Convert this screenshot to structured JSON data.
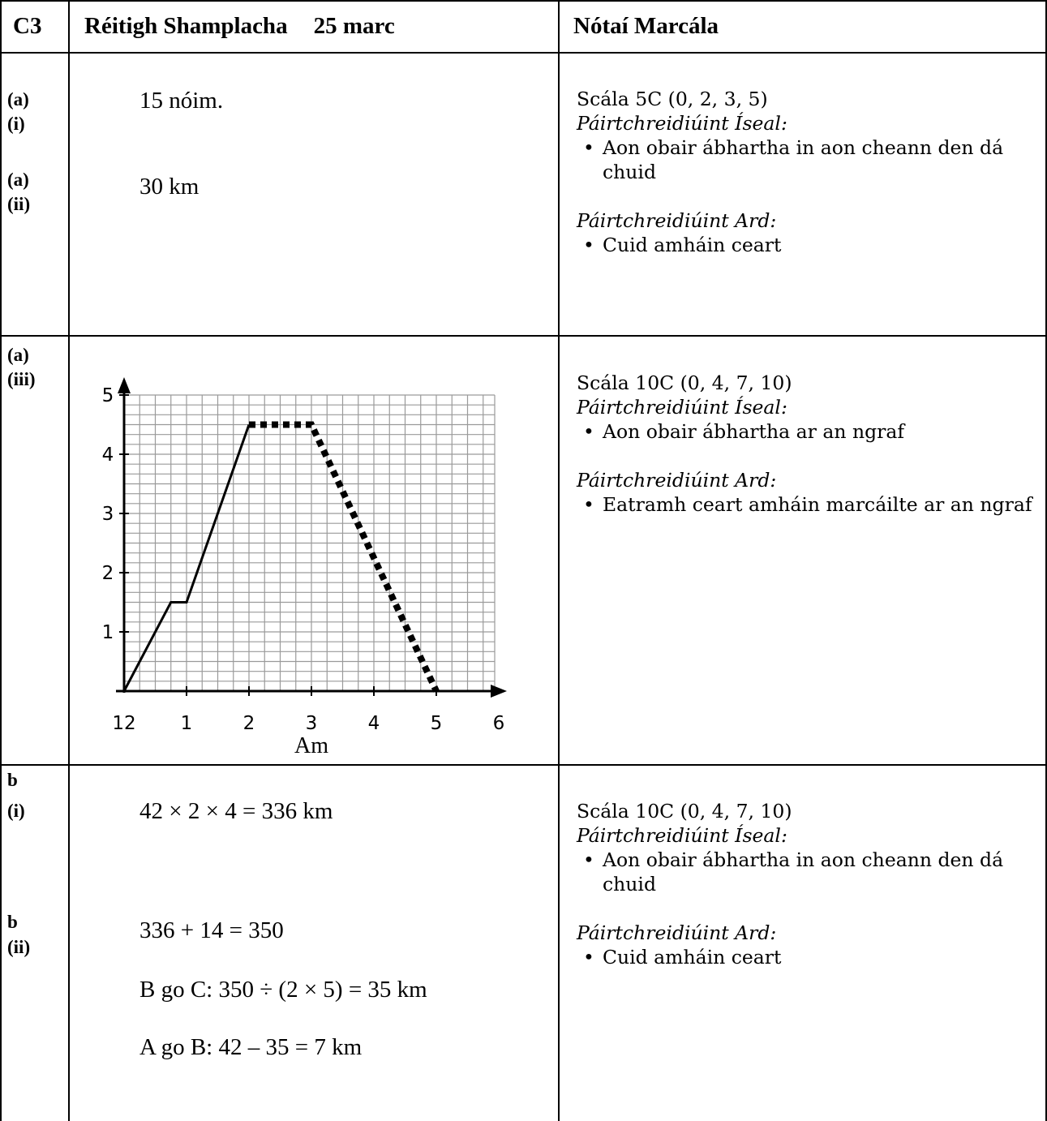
{
  "header": {
    "question": "C3",
    "solutions_title": "Réitigh Shamplacha",
    "marks": "25 marc",
    "notes_title": "Nótaí Marcála"
  },
  "rows": [
    {
      "labels": [
        "(a)",
        "(i)",
        "(a)",
        "(ii)"
      ],
      "solutions": [
        "15 nóim.",
        "30 km"
      ],
      "notes": {
        "scale": "Scála 5C (0, 2, 3, 5)",
        "low_heading": "Páirtchreidiúint Íseal:",
        "low_items": [
          "Aon obair ábhartha in aon cheann den dá chuid"
        ],
        "high_heading": "Páirtchreidiúint Ard:",
        "high_items": [
          "Cuid amháin ceart"
        ]
      }
    },
    {
      "labels": [
        "(a)",
        "(iii)"
      ],
      "notes": {
        "scale": "Scála 10C (0, 4, 7, 10)",
        "low_heading": "Páirtchreidiúint Íseal:",
        "low_items": [
          "Aon obair ábhartha ar an ngraf"
        ],
        "high_heading": "Páirtchreidiúint Ard:",
        "high_items": [
          "Eatramh ceart amháin marcáilte ar an ngraf"
        ]
      }
    },
    {
      "labels": [
        "b",
        "(i)",
        "b",
        "(ii)"
      ],
      "solutions": [
        "42 × 2 × 4 = 336 km",
        "336 + 14 = 350",
        "B go C:  350 ÷ (2 × 5) = 35 km",
        "A go B: 42 – 35 = 7 km"
      ],
      "notes": {
        "scale": "Scála 10C (0, 4, 7, 10)",
        "low_heading": "Páirtchreidiúint Íseal:",
        "low_items": [
          "Aon obair ábhartha in aon cheann den dá chuid"
        ],
        "high_heading": "Páirtchreidiúint Ard:",
        "high_items": [
          "Cuid amháin ceart"
        ]
      }
    }
  ],
  "chart_data": {
    "type": "line",
    "title": "",
    "xlabel": "Am",
    "ylabel": "",
    "x_tick_labels": [
      "12",
      "1",
      "2",
      "3",
      "4",
      "5",
      "6"
    ],
    "y_tick_labels": [
      "1",
      "2",
      "3",
      "4",
      "5"
    ],
    "xlim": [
      0,
      6
    ],
    "ylim": [
      0,
      5
    ],
    "grid": true,
    "series": [
      {
        "style": "solid",
        "x": [
          0,
          0.75,
          1,
          2
        ],
        "y": [
          0,
          1.5,
          1.5,
          4.5
        ]
      },
      {
        "style": "dotted",
        "x": [
          2,
          3,
          5
        ],
        "y": [
          4.5,
          4.5,
          0
        ]
      }
    ]
  }
}
